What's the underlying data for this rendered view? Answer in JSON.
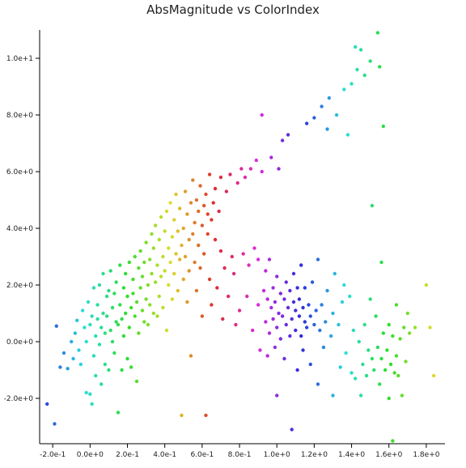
{
  "chart_data": {
    "type": "scatter",
    "title": "AbsMagnitude vs ColorIndex",
    "xlabel": "",
    "ylabel": "",
    "xlim": [
      -0.27,
      1.9
    ],
    "ylim": [
      -3.6,
      11.0
    ],
    "x_ticks": [
      {
        "value": -0.2,
        "label": "-2.0e-1"
      },
      {
        "value": 0.0,
        "label": "0.0e+0"
      },
      {
        "value": 0.2,
        "label": "2.0e-1"
      },
      {
        "value": 0.4,
        "label": "4.0e-1"
      },
      {
        "value": 0.6,
        "label": "6.0e-1"
      },
      {
        "value": 0.8,
        "label": "8.0e-1"
      },
      {
        "value": 1.0,
        "label": "1.0e+0"
      },
      {
        "value": 1.2,
        "label": "1.2e+0"
      },
      {
        "value": 1.4,
        "label": "1.4e+0"
      },
      {
        "value": 1.6,
        "label": "1.6e+0"
      },
      {
        "value": 1.8,
        "label": "1.8e+0"
      }
    ],
    "y_ticks": [
      {
        "value": -2,
        "label": "-2.0e+0"
      },
      {
        "value": 0,
        "label": "0.0e+0"
      },
      {
        "value": 2,
        "label": "2.0e+0"
      },
      {
        "value": 4,
        "label": "4.0e+0"
      },
      {
        "value": 6,
        "label": "6.0e+0"
      },
      {
        "value": 8,
        "label": "8.0e+0"
      },
      {
        "value": 10,
        "label": "1.0e+1"
      }
    ],
    "grid": false,
    "color_encoding": "hue by ColorIndex (blue to magenta)",
    "points": [
      [
        -0.23,
        -2.2
      ],
      [
        -0.19,
        -2.9
      ],
      [
        -0.18,
        0.55
      ],
      [
        -0.16,
        -0.9
      ],
      [
        -0.14,
        -0.4
      ],
      [
        -0.12,
        -0.95
      ],
      [
        -0.1,
        0.0
      ],
      [
        -0.09,
        -0.6
      ],
      [
        -0.08,
        0.3
      ],
      [
        -0.07,
        0.75
      ],
      [
        -0.06,
        -0.3
      ],
      [
        -0.05,
        -0.8
      ],
      [
        -0.04,
        1.1
      ],
      [
        -0.03,
        0.5
      ],
      [
        -0.02,
        -1.8
      ],
      [
        -0.02,
        0.0
      ],
      [
        -0.01,
        1.4
      ],
      [
        0.0,
        -1.85
      ],
      [
        0.0,
        0.6
      ],
      [
        0.01,
        -2.2
      ],
      [
        0.01,
        0.9
      ],
      [
        0.02,
        -0.5
      ],
      [
        0.02,
        1.9
      ],
      [
        0.03,
        0.2
      ],
      [
        0.03,
        -1.2
      ],
      [
        0.04,
        0.8
      ],
      [
        0.04,
        1.3
      ],
      [
        0.05,
        -0.1
      ],
      [
        0.05,
        2.0
      ],
      [
        0.06,
        0.5
      ],
      [
        0.06,
        -1.5
      ],
      [
        0.07,
        1.0
      ],
      [
        0.07,
        2.4
      ],
      [
        0.08,
        0.3
      ],
      [
        0.08,
        -0.8
      ],
      [
        0.09,
        1.6
      ],
      [
        0.09,
        0.9
      ],
      [
        0.1,
        -1.0
      ],
      [
        0.1,
        1.8
      ],
      [
        0.11,
        0.4
      ],
      [
        0.11,
        2.5
      ],
      [
        0.12,
        0.0
      ],
      [
        0.12,
        1.2
      ],
      [
        0.13,
        -0.4
      ],
      [
        0.13,
        1.7
      ],
      [
        0.14,
        0.7
      ],
      [
        0.14,
        2.1
      ],
      [
        0.15,
        -2.5
      ],
      [
        0.15,
        0.6
      ],
      [
        0.16,
        1.3
      ],
      [
        0.16,
        2.7
      ],
      [
        0.17,
        -1.0
      ],
      [
        0.17,
        0.8
      ],
      [
        0.18,
        1.9
      ],
      [
        0.18,
        0.2
      ],
      [
        0.19,
        2.4
      ],
      [
        0.19,
        1.0
      ],
      [
        0.2,
        -0.6
      ],
      [
        0.2,
        1.6
      ],
      [
        0.21,
        2.8
      ],
      [
        0.21,
        0.5
      ],
      [
        0.22,
        1.2
      ],
      [
        0.22,
        -0.9
      ],
      [
        0.23,
        2.2
      ],
      [
        0.23,
        1.7
      ],
      [
        0.24,
        0.9
      ],
      [
        0.24,
        3.0
      ],
      [
        0.25,
        -1.4
      ],
      [
        0.25,
        1.4
      ],
      [
        0.26,
        2.6
      ],
      [
        0.26,
        0.3
      ],
      [
        0.27,
        1.9
      ],
      [
        0.27,
        3.2
      ],
      [
        0.28,
        1.1
      ],
      [
        0.28,
        2.3
      ],
      [
        0.29,
        0.7
      ],
      [
        0.29,
        2.8
      ],
      [
        0.3,
        1.5
      ],
      [
        0.3,
        3.5
      ],
      [
        0.31,
        2.0
      ],
      [
        0.31,
        0.6
      ],
      [
        0.32,
        2.9
      ],
      [
        0.32,
        1.3
      ],
      [
        0.33,
        3.8
      ],
      [
        0.33,
        2.4
      ],
      [
        0.34,
        1.0
      ],
      [
        0.34,
        3.3
      ],
      [
        0.35,
        2.1
      ],
      [
        0.35,
        4.1
      ],
      [
        0.36,
        0.9
      ],
      [
        0.36,
        2.7
      ],
      [
        0.37,
        3.6
      ],
      [
        0.37,
        1.6
      ],
      [
        0.38,
        2.3
      ],
      [
        0.38,
        4.4
      ],
      [
        0.39,
        3.0
      ],
      [
        0.39,
        1.2
      ],
      [
        0.4,
        3.9
      ],
      [
        0.4,
        2.5
      ],
      [
        0.41,
        4.6
      ],
      [
        0.41,
        0.4
      ],
      [
        0.42,
        3.3
      ],
      [
        0.42,
        2.0
      ],
      [
        0.43,
        4.9
      ],
      [
        0.43,
        2.8
      ],
      [
        0.44,
        3.7
      ],
      [
        0.44,
        1.5
      ],
      [
        0.45,
        4.3
      ],
      [
        0.45,
        2.4
      ],
      [
        0.46,
        3.1
      ],
      [
        0.46,
        5.2
      ],
      [
        0.47,
        1.8
      ],
      [
        0.47,
        3.9
      ],
      [
        0.48,
        2.9
      ],
      [
        0.48,
        4.7
      ],
      [
        0.49,
        3.4
      ],
      [
        0.49,
        -2.6
      ],
      [
        0.5,
        2.2
      ],
      [
        0.5,
        4.0
      ],
      [
        0.51,
        5.3
      ],
      [
        0.51,
        3.0
      ],
      [
        0.52,
        1.4
      ],
      [
        0.52,
        4.5
      ],
      [
        0.53,
        3.6
      ],
      [
        0.53,
        2.5
      ],
      [
        0.54,
        4.9
      ],
      [
        0.54,
        -0.5
      ],
      [
        0.55,
        3.8
      ],
      [
        0.55,
        5.7
      ],
      [
        0.56,
        2.8
      ],
      [
        0.56,
        4.2
      ],
      [
        0.57,
        5.0
      ],
      [
        0.57,
        1.8
      ],
      [
        0.58,
        3.4
      ],
      [
        0.58,
        4.6
      ],
      [
        0.59,
        5.5
      ],
      [
        0.59,
        2.6
      ],
      [
        0.6,
        4.1
      ],
      [
        0.6,
        0.9
      ],
      [
        0.61,
        4.8
      ],
      [
        0.61,
        3.1
      ],
      [
        0.62,
        -2.6
      ],
      [
        0.62,
        5.2
      ],
      [
        0.63,
        3.8
      ],
      [
        0.63,
        4.5
      ],
      [
        0.64,
        2.2
      ],
      [
        0.64,
        5.9
      ],
      [
        0.65,
        4.3
      ],
      [
        0.65,
        1.3
      ],
      [
        0.66,
        4.9
      ],
      [
        0.67,
        3.6
      ],
      [
        0.67,
        5.4
      ],
      [
        0.68,
        1.9
      ],
      [
        0.69,
        4.6
      ],
      [
        0.7,
        3.2
      ],
      [
        0.7,
        5.8
      ],
      [
        0.71,
        0.8
      ],
      [
        0.72,
        2.6
      ],
      [
        0.73,
        5.3
      ],
      [
        0.74,
        1.6
      ],
      [
        0.75,
        5.9
      ],
      [
        0.76,
        3.0
      ],
      [
        0.77,
        2.4
      ],
      [
        0.78,
        0.6
      ],
      [
        0.79,
        5.6
      ],
      [
        0.8,
        1.1
      ],
      [
        0.81,
        6.1
      ],
      [
        0.82,
        3.1
      ],
      [
        0.83,
        5.8
      ],
      [
        0.84,
        1.6
      ],
      [
        0.85,
        2.7
      ],
      [
        0.86,
        6.1
      ],
      [
        0.87,
        0.4
      ],
      [
        0.88,
        3.3
      ],
      [
        0.89,
        6.4
      ],
      [
        0.9,
        1.3
      ],
      [
        0.9,
        2.9
      ],
      [
        0.91,
        -0.3
      ],
      [
        0.92,
        6.0
      ],
      [
        0.92,
        8.0
      ],
      [
        0.93,
        1.8
      ],
      [
        0.94,
        0.7
      ],
      [
        0.94,
        2.5
      ],
      [
        0.95,
        -0.5
      ],
      [
        0.95,
        1.5
      ],
      [
        0.96,
        0.3
      ],
      [
        0.96,
        2.9
      ],
      [
        0.97,
        1.2
      ],
      [
        0.97,
        6.5
      ],
      [
        0.98,
        0.8
      ],
      [
        0.98,
        1.9
      ],
      [
        0.99,
        -0.2
      ],
      [
        0.99,
        1.4
      ],
      [
        1.0,
        0.5
      ],
      [
        1.0,
        -1.9
      ],
      [
        1.0,
        2.3
      ],
      [
        1.01,
        1.0
      ],
      [
        1.01,
        6.1
      ],
      [
        1.02,
        1.7
      ],
      [
        1.02,
        0.1
      ],
      [
        1.03,
        0.9
      ],
      [
        1.03,
        7.1
      ],
      [
        1.04,
        1.5
      ],
      [
        1.04,
        -0.6
      ],
      [
        1.05,
        0.6
      ],
      [
        1.05,
        2.1
      ],
      [
        1.06,
        1.2
      ],
      [
        1.06,
        7.3
      ],
      [
        1.07,
        0.2
      ],
      [
        1.07,
        1.8
      ],
      [
        1.08,
        -3.1
      ],
      [
        1.08,
        0.8
      ],
      [
        1.09,
        1.4
      ],
      [
        1.09,
        2.4
      ],
      [
        1.1,
        0.4
      ],
      [
        1.1,
        1.1
      ],
      [
        1.11,
        -1.0
      ],
      [
        1.11,
        1.9
      ],
      [
        1.12,
        0.9
      ],
      [
        1.12,
        1.5
      ],
      [
        1.13,
        0.2
      ],
      [
        1.13,
        2.7
      ],
      [
        1.14,
        1.2
      ],
      [
        1.14,
        -0.3
      ],
      [
        1.15,
        0.7
      ],
      [
        1.15,
        1.9
      ],
      [
        1.16,
        7.7
      ],
      [
        1.16,
        0.5
      ],
      [
        1.17,
        1.3
      ],
      [
        1.18,
        -0.8
      ],
      [
        1.18,
        0.9
      ],
      [
        1.19,
        2.1
      ],
      [
        1.2,
        0.6
      ],
      [
        1.2,
        7.9
      ],
      [
        1.21,
        1.1
      ],
      [
        1.22,
        -1.5
      ],
      [
        1.22,
        2.9
      ],
      [
        1.23,
        0.4
      ],
      [
        1.24,
        8.3
      ],
      [
        1.24,
        1.3
      ],
      [
        1.25,
        -0.2
      ],
      [
        1.26,
        0.7
      ],
      [
        1.27,
        1.8
      ],
      [
        1.27,
        7.5
      ],
      [
        1.28,
        8.6
      ],
      [
        1.29,
        0.2
      ],
      [
        1.3,
        -1.9
      ],
      [
        1.3,
        1.0
      ],
      [
        1.31,
        2.4
      ],
      [
        1.32,
        8.0
      ],
      [
        1.33,
        0.6
      ],
      [
        1.34,
        -0.9
      ],
      [
        1.35,
        1.4
      ],
      [
        1.36,
        8.9
      ],
      [
        1.36,
        2.0
      ],
      [
        1.37,
        -0.4
      ],
      [
        1.38,
        7.3
      ],
      [
        1.39,
        1.6
      ],
      [
        1.4,
        -1.1
      ],
      [
        1.4,
        9.1
      ],
      [
        1.41,
        0.4
      ],
      [
        1.42,
        10.4
      ],
      [
        1.42,
        -1.3
      ],
      [
        1.43,
        9.6
      ],
      [
        1.44,
        0.0
      ],
      [
        1.45,
        -1.9
      ],
      [
        1.45,
        10.3
      ],
      [
        1.46,
        -0.8
      ],
      [
        1.47,
        0.6
      ],
      [
        1.47,
        9.4
      ],
      [
        1.48,
        -1.2
      ],
      [
        1.49,
        -0.3
      ],
      [
        1.5,
        1.5
      ],
      [
        1.5,
        9.9
      ],
      [
        1.51,
        4.8
      ],
      [
        1.51,
        -0.6
      ],
      [
        1.52,
        -1.0
      ],
      [
        1.53,
        0.9
      ],
      [
        1.54,
        -0.2
      ],
      [
        1.54,
        10.9
      ],
      [
        1.55,
        -1.5
      ],
      [
        1.55,
        9.7
      ],
      [
        1.56,
        2.8
      ],
      [
        1.56,
        -0.6
      ],
      [
        1.57,
        7.6
      ],
      [
        1.57,
        0.3
      ],
      [
        1.58,
        -1.0
      ],
      [
        1.59,
        -0.3
      ],
      [
        1.6,
        -2.0
      ],
      [
        1.6,
        0.6
      ],
      [
        1.61,
        -0.8
      ],
      [
        1.62,
        -3.5
      ],
      [
        1.62,
        0.2
      ],
      [
        1.63,
        -1.1
      ],
      [
        1.64,
        1.3
      ],
      [
        1.64,
        -0.5
      ],
      [
        1.65,
        -1.2
      ],
      [
        1.66,
        0.1
      ],
      [
        1.67,
        -1.9
      ],
      [
        1.68,
        0.5
      ],
      [
        1.69,
        -0.7
      ],
      [
        1.7,
        1.0
      ],
      [
        1.71,
        0.3
      ],
      [
        1.74,
        0.5
      ],
      [
        1.8,
        2.0
      ],
      [
        1.82,
        0.5
      ],
      [
        1.84,
        -1.2
      ]
    ]
  }
}
